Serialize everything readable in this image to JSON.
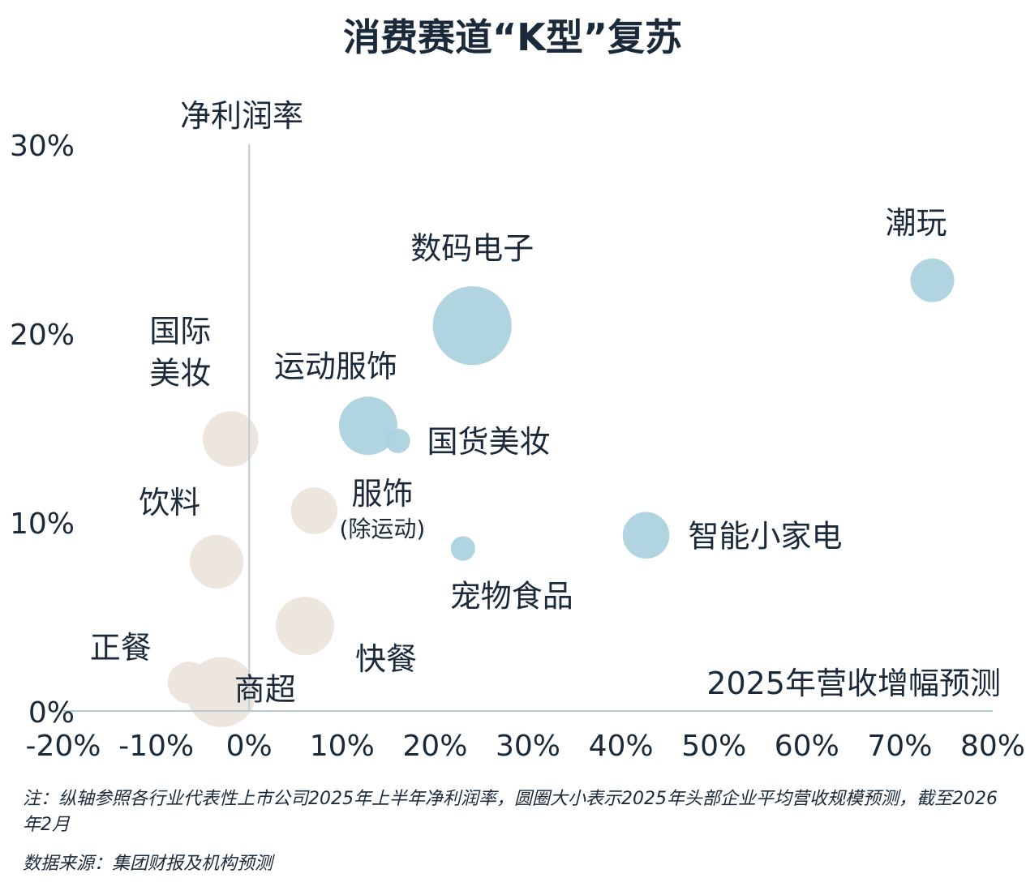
{
  "chart_data": {
    "type": "scatter",
    "title": "消费赛道“K型”复苏",
    "xlabel": "2025年营收增幅预测",
    "ylabel": "净利润率",
    "xlim": [
      -20,
      80
    ],
    "ylim": [
      0,
      30
    ],
    "x_ticks": [
      "-20%",
      "-10%",
      "0%",
      "10%",
      "20%",
      "30%",
      "40%",
      "50%",
      "60%",
      "70%",
      "80%"
    ],
    "y_ticks": [
      "0%",
      "10%",
      "20%",
      "30%"
    ],
    "colors": {
      "growth": "#a9d1de",
      "decline": "#ece4dc",
      "axis": "#b9ccd6"
    },
    "points": [
      {
        "name": "潮玩",
        "x": 73.5,
        "y": 22.8,
        "size": 0.75,
        "group": "growth"
      },
      {
        "name": "数码电子",
        "x": 24.0,
        "y": 20.4,
        "size": 1.35,
        "group": "growth"
      },
      {
        "name": "运动服饰",
        "x": 12.8,
        "y": 15.1,
        "size": 1.0,
        "group": "growth"
      },
      {
        "name": "国货美妆",
        "x": 16.0,
        "y": 14.3,
        "size": 0.42,
        "group": "growth"
      },
      {
        "name": "智能小家电",
        "x": 42.7,
        "y": 9.3,
        "size": 0.8,
        "group": "growth"
      },
      {
        "name": "宠物食品",
        "x": 23.0,
        "y": 8.6,
        "size": 0.42,
        "group": "growth"
      },
      {
        "name": "国际美妆",
        "x": -2.0,
        "y": 14.4,
        "size": 0.95,
        "group": "decline"
      },
      {
        "name": "饮料",
        "x": -3.5,
        "y": 7.9,
        "size": 0.92,
        "group": "decline"
      },
      {
        "name": "服饰",
        "sub": "(除运动)",
        "x": 7.0,
        "y": 10.6,
        "size": 0.8,
        "group": "decline"
      },
      {
        "name": "快餐",
        "x": 6.0,
        "y": 4.5,
        "size": 1.0,
        "group": "decline"
      },
      {
        "name": "正餐",
        "x": -6.5,
        "y": 1.5,
        "size": 0.72,
        "group": "decline"
      },
      {
        "name": "商超",
        "x": -3.0,
        "y": 1.0,
        "size": 1.2,
        "group": "decline"
      }
    ]
  },
  "notes": {
    "line1": "注：纵轴参照各行业代表性上市公司2025年上半年净利润率，圆圈大小表示2025年头部企业平均营收规模预测，截至2026年2月",
    "line2": "数据来源：集团财报及机构预测"
  }
}
